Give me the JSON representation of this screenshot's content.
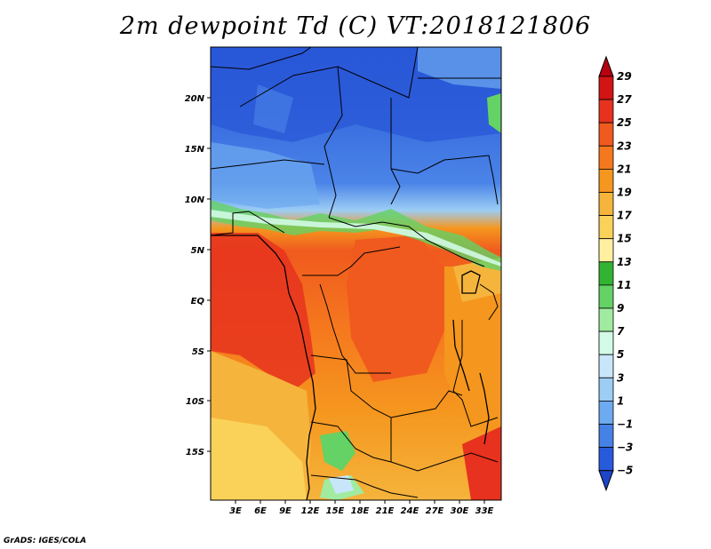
{
  "title": "2m dewpoint Td (C) VT:2018121806",
  "credit": "GrADS: IGES/COLA",
  "map": {
    "region": "Central and West Africa",
    "lon_range": [
      0,
      35
    ],
    "lat_range": [
      -20,
      24
    ],
    "lon_ticks": [
      "3E",
      "6E",
      "9E",
      "12E",
      "15E",
      "18E",
      "21E",
      "24E",
      "27E",
      "30E",
      "33E"
    ],
    "lat_ticks": [
      "20N",
      "15N",
      "10N",
      "5N",
      "EQ",
      "5S",
      "10S",
      "15S"
    ]
  },
  "colorbar": {
    "levels": [
      "29",
      "27",
      "25",
      "23",
      "21",
      "19",
      "17",
      "15",
      "13",
      "11",
      "9",
      "7",
      "5",
      "3",
      "1",
      "−1",
      "−3",
      "−5"
    ],
    "colors": [
      "#b4000f",
      "#d21414",
      "#e6321e",
      "#f05a1e",
      "#f5781e",
      "#f5961e",
      "#f5b43c",
      "#fad25a",
      "#fff0a0",
      "#32b432",
      "#64d264",
      "#a0eba0",
      "#d2fae6",
      "#c8e6fa",
      "#9bcdf5",
      "#6eaaf0",
      "#4682e6",
      "#285adc",
      "#1e46c8"
    ]
  }
}
